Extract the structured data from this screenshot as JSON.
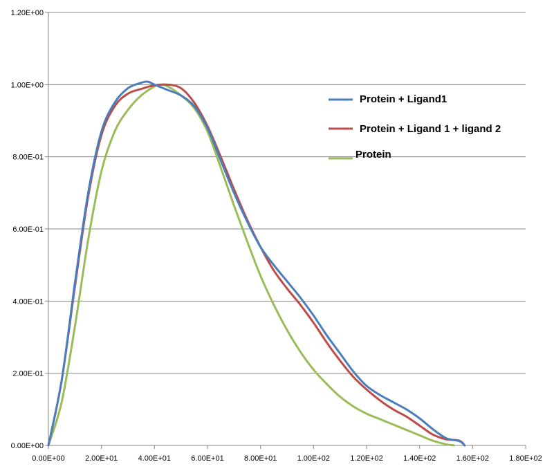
{
  "chart_data": {
    "type": "line",
    "title": "",
    "xlabel": "",
    "ylabel": "",
    "xlim": [
      0,
      180
    ],
    "ylim": [
      0,
      1.2
    ],
    "x_ticks": [
      0,
      20,
      40,
      60,
      80,
      100,
      120,
      140,
      160,
      180
    ],
    "x_tick_labels": [
      "0.00E+00",
      "2.00E+01",
      "4.00E+01",
      "6.00E+01",
      "8.00E+01",
      "1.00E+02",
      "1.20E+02",
      "1.40E+02",
      "1.60E+02",
      "1.80E+02"
    ],
    "y_ticks": [
      0,
      0.2,
      0.4,
      0.6,
      0.8,
      1.0,
      1.2
    ],
    "y_tick_labels": [
      "0.00E+00",
      "2.00E-01",
      "4.00E-01",
      "6.00E-01",
      "8.00E-01",
      "1.00E+00",
      "1.20E+00"
    ],
    "grid": "horizontal",
    "legend_position": "right",
    "series": [
      {
        "name": "Protein + Ligand1",
        "color": "#4A7EBB",
        "points": [
          [
            0,
            0
          ],
          [
            5,
            0.18
          ],
          [
            10,
            0.45
          ],
          [
            15,
            0.7
          ],
          [
            20,
            0.87
          ],
          [
            25,
            0.95
          ],
          [
            30,
            0.99
          ],
          [
            35,
            1.005
          ],
          [
            37.5,
            1.008
          ],
          [
            40,
            1.0
          ],
          [
            45,
            0.985
          ],
          [
            50,
            0.97
          ],
          [
            55,
            0.94
          ],
          [
            60,
            0.88
          ],
          [
            65,
            0.79
          ],
          [
            70,
            0.7
          ],
          [
            75,
            0.62
          ],
          [
            80,
            0.55
          ],
          [
            85,
            0.5
          ],
          [
            90,
            0.455
          ],
          [
            95,
            0.41
          ],
          [
            100,
            0.36
          ],
          [
            105,
            0.305
          ],
          [
            110,
            0.255
          ],
          [
            115,
            0.205
          ],
          [
            120,
            0.165
          ],
          [
            125,
            0.14
          ],
          [
            130,
            0.12
          ],
          [
            135,
            0.1
          ],
          [
            140,
            0.075
          ],
          [
            145,
            0.045
          ],
          [
            150,
            0.02
          ],
          [
            155,
            0.012
          ],
          [
            157,
            0
          ]
        ]
      },
      {
        "name": "Protein + Ligand 1 + ligand 2",
        "color": "#BE4B48",
        "points": [
          [
            0,
            0
          ],
          [
            5,
            0.18
          ],
          [
            10,
            0.44
          ],
          [
            15,
            0.69
          ],
          [
            20,
            0.86
          ],
          [
            25,
            0.94
          ],
          [
            30,
            0.975
          ],
          [
            35,
            0.988
          ],
          [
            40,
            0.998
          ],
          [
            45,
            1.0
          ],
          [
            50,
            0.99
          ],
          [
            55,
            0.95
          ],
          [
            60,
            0.885
          ],
          [
            65,
            0.8
          ],
          [
            70,
            0.71
          ],
          [
            75,
            0.625
          ],
          [
            80,
            0.55
          ],
          [
            85,
            0.485
          ],
          [
            90,
            0.435
          ],
          [
            95,
            0.39
          ],
          [
            100,
            0.34
          ],
          [
            105,
            0.285
          ],
          [
            110,
            0.235
          ],
          [
            115,
            0.19
          ],
          [
            120,
            0.155
          ],
          [
            125,
            0.125
          ],
          [
            130,
            0.1
          ],
          [
            135,
            0.08
          ],
          [
            140,
            0.055
          ],
          [
            145,
            0.03
          ],
          [
            150,
            0.017
          ],
          [
            155,
            0.013
          ],
          [
            157,
            0
          ]
        ]
      },
      {
        "name": "Protein",
        "color": "#9BBB59",
        "points": [
          [
            0,
            0
          ],
          [
            5,
            0.12
          ],
          [
            10,
            0.33
          ],
          [
            15,
            0.57
          ],
          [
            20,
            0.76
          ],
          [
            25,
            0.87
          ],
          [
            30,
            0.93
          ],
          [
            35,
            0.97
          ],
          [
            40,
            0.995
          ],
          [
            42,
            1.0
          ],
          [
            45,
            0.995
          ],
          [
            50,
            0.97
          ],
          [
            55,
            0.935
          ],
          [
            60,
            0.87
          ],
          [
            65,
            0.77
          ],
          [
            70,
            0.665
          ],
          [
            75,
            0.565
          ],
          [
            80,
            0.47
          ],
          [
            85,
            0.39
          ],
          [
            90,
            0.32
          ],
          [
            95,
            0.26
          ],
          [
            100,
            0.21
          ],
          [
            105,
            0.17
          ],
          [
            110,
            0.135
          ],
          [
            115,
            0.108
          ],
          [
            120,
            0.088
          ],
          [
            125,
            0.073
          ],
          [
            130,
            0.058
          ],
          [
            135,
            0.043
          ],
          [
            140,
            0.028
          ],
          [
            145,
            0.013
          ],
          [
            150,
            0.003
          ],
          [
            153,
            0
          ]
        ]
      }
    ]
  }
}
